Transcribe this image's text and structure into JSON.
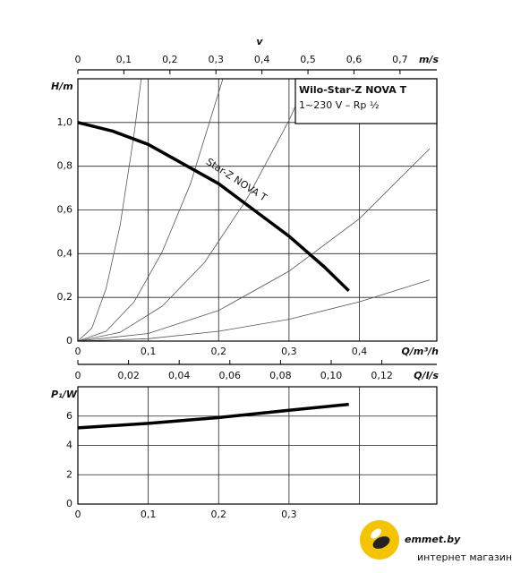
{
  "chart_data": [
    {
      "type": "line",
      "title": "Wilo-Star-Z NOVA T",
      "subtitle": "1~230 V – Rp ½",
      "y_label": "H/m",
      "x_label": "Q/m³/h",
      "xlim": [
        0,
        0.51
      ],
      "xticks": [
        0,
        {
          "value": 0.1,
          "label": "0,1"
        },
        {
          "value": 0.2,
          "label": "0,2"
        },
        {
          "value": 0.3,
          "label": "0,3"
        },
        {
          "value": 0.4,
          "label": "0,4"
        }
      ],
      "ylim": [
        0,
        1.2
      ],
      "yticks": [
        0,
        {
          "value": 0.2,
          "label": "0,2"
        },
        {
          "value": 0.4,
          "label": "0,4"
        },
        {
          "value": 0.6,
          "label": "0,6"
        },
        {
          "value": 0.8,
          "label": "0,8"
        },
        {
          "value": 1.0,
          "label": "1,0"
        }
      ],
      "top_axis": {
        "label": "v",
        "unit": "m/s",
        "lim": [
          0,
          0.78
        ],
        "ticks": [
          0,
          {
            "value": 0.1,
            "label": "0,1"
          },
          {
            "value": 0.2,
            "label": "0,2"
          },
          {
            "value": 0.3,
            "label": "0,3"
          },
          {
            "value": 0.4,
            "label": "0,4"
          },
          {
            "value": 0.5,
            "label": "0,5"
          },
          {
            "value": 0.6,
            "label": "0,6"
          },
          {
            "value": 0.7,
            "label": "0,7"
          }
        ]
      },
      "bottom_axis": {
        "label": "Q/l/s",
        "lim": [
          0,
          0.1417
        ],
        "ticks": [
          0,
          {
            "value": 0.02,
            "label": "0,02"
          },
          {
            "value": 0.04,
            "label": "0,04"
          },
          {
            "value": 0.06,
            "label": "0,06"
          },
          {
            "value": 0.08,
            "label": "0,08"
          },
          {
            "value": 0.1,
            "label": "0,10"
          },
          {
            "value": 0.12,
            "label": "0,12"
          }
        ]
      },
      "grid": true,
      "series": [
        {
          "name": "Star-Z NOVA T",
          "color": "#000000",
          "x": [
            0,
            0.05,
            0.1,
            0.15,
            0.2,
            0.25,
            0.3,
            0.35,
            0.385
          ],
          "values": [
            1.0,
            0.96,
            0.9,
            0.81,
            0.72,
            0.6,
            0.48,
            0.34,
            0.23
          ]
        }
      ],
      "system_curves": [
        {
          "color": "#555555",
          "x": [
            0,
            0.02,
            0.04,
            0.06,
            0.08,
            0.09
          ],
          "values": [
            0,
            0.06,
            0.24,
            0.53,
            0.95,
            1.2
          ]
        },
        {
          "color": "#555555",
          "x": [
            0,
            0.04,
            0.08,
            0.12,
            0.16,
            0.206
          ],
          "values": [
            0,
            0.045,
            0.18,
            0.41,
            0.72,
            1.2
          ]
        },
        {
          "color": "#555555",
          "x": [
            0,
            0.06,
            0.12,
            0.18,
            0.24,
            0.3,
            0.327
          ],
          "values": [
            0,
            0.04,
            0.16,
            0.36,
            0.65,
            1.01,
            1.2
          ]
        },
        {
          "color": "#555555",
          "x": [
            0,
            0.1,
            0.2,
            0.3,
            0.4,
            0.5
          ],
          "values": [
            0,
            0.035,
            0.14,
            0.32,
            0.56,
            0.88
          ]
        },
        {
          "color": "#555555",
          "x": [
            0,
            0.1,
            0.2,
            0.3,
            0.4,
            0.5
          ],
          "values": [
            0,
            0.011,
            0.045,
            0.1,
            0.18,
            0.28
          ]
        }
      ]
    },
    {
      "type": "line",
      "y_label": "P₁/W",
      "xlim": [
        0,
        0.51
      ],
      "xticks": [
        0,
        {
          "value": 0.1,
          "label": "0,1"
        },
        {
          "value": 0.2,
          "label": "0,2"
        },
        {
          "value": 0.3,
          "label": "0,3"
        }
      ],
      "ylim": [
        0,
        8
      ],
      "yticks": [
        0,
        2,
        4,
        6
      ],
      "grid": true,
      "series": [
        {
          "color": "#000000",
          "x": [
            0,
            0.1,
            0.2,
            0.3,
            0.385
          ],
          "values": [
            5.2,
            5.5,
            5.9,
            6.4,
            6.8
          ]
        }
      ]
    }
  ],
  "watermark": {
    "brand": "emmet.by",
    "tagline": "интернет магазин"
  }
}
